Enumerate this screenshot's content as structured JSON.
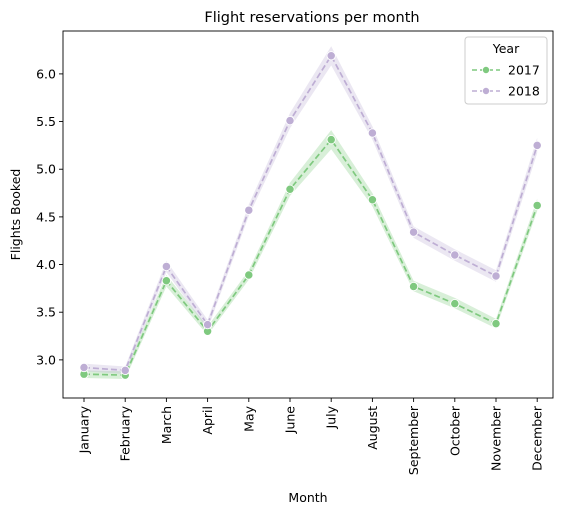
{
  "chart_data": {
    "type": "line",
    "title": "Flight reservations per month",
    "xlabel": "Month",
    "ylabel": "Flights Booked",
    "categories": [
      "January",
      "February",
      "March",
      "April",
      "May",
      "June",
      "July",
      "August",
      "September",
      "October",
      "November",
      "December"
    ],
    "ylim": [
      2.6,
      6.45
    ],
    "yticks": [
      3.0,
      3.5,
      4.0,
      4.5,
      5.0,
      5.5,
      6.0
    ],
    "ytick_labels": [
      "3.0",
      "3.5",
      "4.0",
      "4.5",
      "5.0",
      "5.5",
      "6.0"
    ],
    "grid": false,
    "legend": {
      "title": "Year",
      "placement": "top-right"
    },
    "series": [
      {
        "name": "2017",
        "color": "#7fc97f",
        "band_color": "#7fc97f",
        "marker": "circle",
        "linestyle": "dashed",
        "values": [
          2.85,
          2.84,
          3.83,
          3.3,
          3.89,
          4.79,
          5.31,
          4.68,
          3.77,
          3.59,
          3.38,
          4.62
        ],
        "ci_low": [
          2.81,
          2.8,
          3.77,
          3.26,
          3.84,
          4.72,
          5.21,
          4.61,
          3.72,
          3.54,
          3.33,
          4.56
        ],
        "ci_high": [
          2.89,
          2.88,
          3.89,
          3.35,
          3.94,
          4.86,
          5.41,
          4.75,
          3.83,
          3.65,
          3.43,
          4.69
        ]
      },
      {
        "name": "2018",
        "color": "#beaed4",
        "band_color": "#beaed4",
        "marker": "circle",
        "linestyle": "dashed",
        "values": [
          2.92,
          2.89,
          3.98,
          3.37,
          4.57,
          5.51,
          6.19,
          5.38,
          4.34,
          4.1,
          3.88,
          5.25
        ],
        "ci_low": [
          2.88,
          2.85,
          3.92,
          3.32,
          4.51,
          5.43,
          6.09,
          5.31,
          4.28,
          4.04,
          3.82,
          5.17
        ],
        "ci_high": [
          2.96,
          2.93,
          4.04,
          3.42,
          4.63,
          5.59,
          6.29,
          5.45,
          4.4,
          4.16,
          3.94,
          5.33
        ]
      }
    ]
  }
}
